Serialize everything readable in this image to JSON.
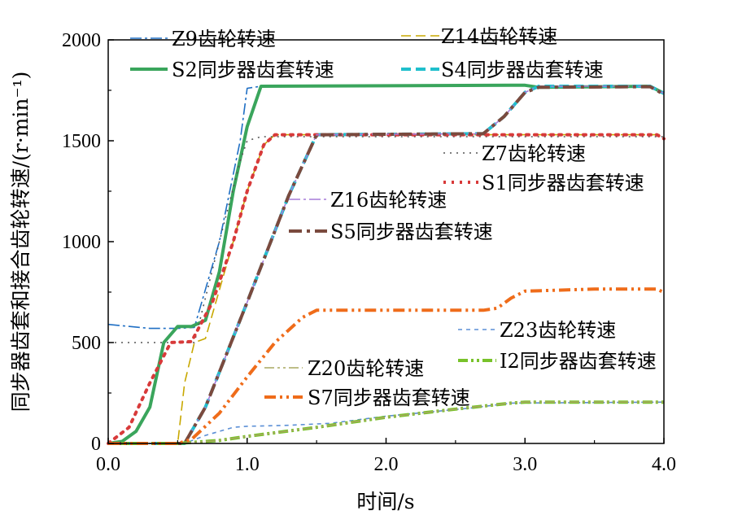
{
  "chart_data": {
    "type": "line",
    "title": "",
    "xlabel": "时间/s",
    "ylabel": "同步器齿套和接合齿轮转速/(r·min⁻¹)",
    "xlim": [
      0,
      4
    ],
    "ylim": [
      0,
      2000
    ],
    "xticks": [
      "0.0",
      "1.0",
      "2.0",
      "3.0",
      "4.0"
    ],
    "yticks": [
      "0",
      "500",
      "1000",
      "1500",
      "2000"
    ],
    "grid": false,
    "series": [
      {
        "name": "Z9齿轮转速",
        "color": "#1f6fc4",
        "dash": "14,4,3,4",
        "width": 1.6,
        "points": [
          [
            0,
            590
          ],
          [
            0.3,
            570
          ],
          [
            0.5,
            570
          ],
          [
            0.62,
            575
          ],
          [
            0.8,
            1000
          ],
          [
            0.95,
            1500
          ],
          [
            1.0,
            1760
          ],
          [
            1.1,
            1770
          ],
          [
            2.95,
            1775
          ],
          [
            3.1,
            1770
          ],
          [
            3.9,
            1770
          ],
          [
            4.0,
            1735
          ]
        ]
      },
      {
        "name": "Z14齿轮转速",
        "color": "#c8a800",
        "dash": "12,6",
        "width": 1.6,
        "points": [
          [
            0,
            0
          ],
          [
            0.5,
            0
          ],
          [
            0.55,
            300
          ],
          [
            0.62,
            500
          ],
          [
            0.7,
            520
          ],
          [
            0.9,
            1000
          ],
          [
            1.0,
            1250
          ],
          [
            1.12,
            1480
          ],
          [
            1.2,
            1530
          ],
          [
            4.0,
            1530
          ]
        ]
      },
      {
        "name": "S2同步器齿套转速",
        "color": "#3aa55c",
        "dash": "",
        "width": 4,
        "points": [
          [
            0,
            0
          ],
          [
            0.1,
            10
          ],
          [
            0.2,
            60
          ],
          [
            0.3,
            180
          ],
          [
            0.4,
            500
          ],
          [
            0.5,
            580
          ],
          [
            0.6,
            580
          ],
          [
            0.7,
            610
          ],
          [
            0.8,
            850
          ],
          [
            0.9,
            1250
          ],
          [
            1.0,
            1570
          ],
          [
            1.1,
            1770
          ],
          [
            2.9,
            1775
          ],
          [
            3.0,
            1775
          ],
          [
            3.1,
            1765
          ],
          [
            3.9,
            1770
          ],
          [
            4.0,
            1735
          ]
        ]
      },
      {
        "name": "S4同步器齿套转速",
        "color": "#1fbfcc",
        "dash": "12,6",
        "width": 4,
        "points": [
          [
            0,
            0
          ],
          [
            0.55,
            0
          ],
          [
            0.7,
            180
          ],
          [
            1.0,
            700
          ],
          [
            1.3,
            1230
          ],
          [
            1.5,
            1530
          ],
          [
            2.7,
            1535
          ],
          [
            2.85,
            1620
          ],
          [
            3.0,
            1740
          ],
          [
            3.1,
            1770
          ],
          [
            3.9,
            1770
          ],
          [
            4.0,
            1735
          ]
        ]
      },
      {
        "name": "Z7齿轮转速",
        "color": "#555555",
        "dash": "2,6",
        "width": 1.6,
        "points": [
          [
            0,
            500
          ],
          [
            0.3,
            500
          ],
          [
            0.5,
            500
          ],
          [
            0.62,
            500
          ],
          [
            0.8,
            1000
          ],
          [
            0.95,
            1400
          ],
          [
            1.0,
            1500
          ],
          [
            1.1,
            1520
          ],
          [
            4.0,
            1520
          ]
        ]
      },
      {
        "name": "S1同步器齿套转速",
        "color": "#d83a3a",
        "dash": "3,7",
        "width": 4,
        "points": [
          [
            0,
            0
          ],
          [
            0.15,
            80
          ],
          [
            0.3,
            300
          ],
          [
            0.45,
            500
          ],
          [
            0.6,
            505
          ],
          [
            0.75,
            700
          ],
          [
            0.9,
            1000
          ],
          [
            1.0,
            1250
          ],
          [
            1.12,
            1480
          ],
          [
            1.2,
            1530
          ],
          [
            3.95,
            1530
          ],
          [
            4.0,
            1510
          ]
        ]
      },
      {
        "name": "Z16齿轮转速",
        "color": "#a57bd8",
        "dash": "14,4,3,4",
        "width": 1.6,
        "points": [
          [
            0,
            0
          ],
          [
            0.55,
            0
          ],
          [
            0.7,
            180
          ],
          [
            1.0,
            700
          ],
          [
            1.3,
            1230
          ],
          [
            1.5,
            1530
          ],
          [
            2.7,
            1535
          ],
          [
            2.85,
            1620
          ],
          [
            3.0,
            1740
          ],
          [
            3.1,
            1770
          ],
          [
            3.9,
            1770
          ],
          [
            4.0,
            1735
          ]
        ]
      },
      {
        "name": "S5同步器齿套转速",
        "color": "#7a4a3e",
        "dash": "16,6,4,6",
        "width": 4,
        "points": [
          [
            0,
            0
          ],
          [
            0.55,
            0
          ],
          [
            0.7,
            180
          ],
          [
            1.0,
            700
          ],
          [
            1.3,
            1230
          ],
          [
            1.5,
            1530
          ],
          [
            2.7,
            1535
          ],
          [
            2.85,
            1620
          ],
          [
            3.0,
            1740
          ],
          [
            3.1,
            1765
          ],
          [
            3.9,
            1768
          ],
          [
            4.0,
            1730
          ]
        ]
      },
      {
        "name": "Z23齿轮转速",
        "color": "#5b8fd6",
        "dash": "5,5",
        "width": 1.6,
        "points": [
          [
            0,
            0
          ],
          [
            0.55,
            0
          ],
          [
            0.7,
            40
          ],
          [
            0.9,
            80
          ],
          [
            1.0,
            85
          ],
          [
            1.3,
            90
          ],
          [
            1.6,
            100
          ],
          [
            2.0,
            135
          ],
          [
            2.6,
            175
          ],
          [
            2.9,
            200
          ],
          [
            4.0,
            205
          ]
        ]
      },
      {
        "name": "I2同步器齿套转速",
        "color": "#78c22a",
        "dash": "12,4,3,4,3,4",
        "width": 4,
        "points": [
          [
            0,
            0
          ],
          [
            0.5,
            0
          ],
          [
            0.8,
            15
          ],
          [
            1.0,
            35
          ],
          [
            1.5,
            80
          ],
          [
            2.0,
            130
          ],
          [
            2.5,
            170
          ],
          [
            2.9,
            200
          ],
          [
            3.0,
            205
          ],
          [
            4.0,
            205
          ]
        ]
      },
      {
        "name": "Z20齿轮转速",
        "color": "#a8a860",
        "dash": "12,4,3,4,3,4",
        "width": 1.6,
        "points": [
          [
            0,
            0
          ],
          [
            0.5,
            0
          ],
          [
            0.8,
            15
          ],
          [
            1.0,
            35
          ],
          [
            1.5,
            80
          ],
          [
            2.0,
            130
          ],
          [
            2.5,
            170
          ],
          [
            2.9,
            200
          ],
          [
            3.0,
            205
          ],
          [
            4.0,
            205
          ]
        ]
      },
      {
        "name": "S7同步器齿套转速",
        "color": "#ef6c1a",
        "dash": "14,5,3,5,3,5",
        "width": 4,
        "points": [
          [
            0,
            0
          ],
          [
            0.5,
            0
          ],
          [
            0.6,
            20
          ],
          [
            0.8,
            150
          ],
          [
            1.0,
            330
          ],
          [
            1.2,
            500
          ],
          [
            1.4,
            625
          ],
          [
            1.5,
            660
          ],
          [
            2.7,
            660
          ],
          [
            2.8,
            670
          ],
          [
            2.9,
            720
          ],
          [
            3.0,
            755
          ],
          [
            3.5,
            765
          ],
          [
            3.95,
            765
          ],
          [
            4.0,
            748
          ]
        ]
      }
    ],
    "legend_labels": [
      "Z9齿轮转速",
      "Z14齿轮转速",
      "S2同步器齿套转速",
      "S4同步器齿套转速",
      "Z7齿轮转速",
      "S1同步器齿套转速",
      "Z16齿轮转速",
      "S5同步器齿套转速",
      "Z23齿轮转速",
      "I2同步器齿套转速",
      "Z20齿轮转速",
      "S7同步器齿套转速"
    ]
  }
}
